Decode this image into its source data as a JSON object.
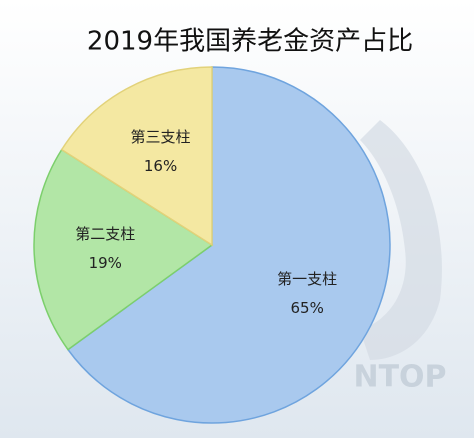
{
  "chart_data": {
    "type": "pie",
    "title": "2019年我国养老金资产占比",
    "watermark": "NTOP",
    "categories": [
      "第一支柱",
      "第二支柱",
      "第三支柱"
    ],
    "values": [
      65,
      19,
      16
    ],
    "value_labels": [
      "65%",
      "19%",
      "16%"
    ],
    "colors": [
      "#a9c9ee",
      "#b2e6a6",
      "#f4e8a2"
    ],
    "edge_colors": [
      "#6fa4de",
      "#7ccf6c",
      "#e2d27a"
    ]
  }
}
